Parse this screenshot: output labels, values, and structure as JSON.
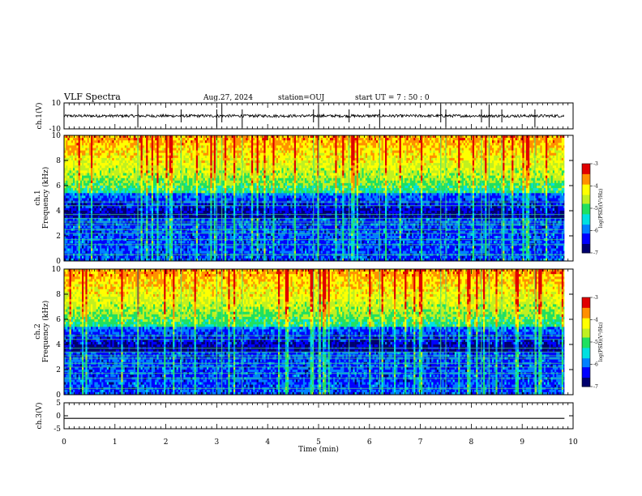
{
  "header": {
    "title": "VLF Spectra",
    "date": "Aug.27, 2024",
    "station": "station=OUJ",
    "start_ut": "start  UT =   7 : 50 : 0"
  },
  "chart_data": {
    "type": "heatmap",
    "x": {
      "label": "Time  (min)",
      "range": [
        0,
        10
      ],
      "ticks": [
        0,
        1,
        2,
        3,
        4,
        5,
        6,
        7,
        8,
        9,
        10
      ],
      "data_end": 9.83
    },
    "panels": [
      {
        "id": "ch1-waveform",
        "ylabel": "ch.1(V)",
        "ylim": [
          -10,
          10
        ],
        "ticks": [
          10,
          -10
        ],
        "baseline": 0
      },
      {
        "id": "ch1-spectrogram",
        "ylabel": "ch.1\nFrequency  (kHz)",
        "ylim": [
          0,
          10
        ],
        "ticks": [
          0,
          2,
          4,
          6,
          8,
          10
        ],
        "colorbar": {
          "label": "log(PSD)(V²/Hz)",
          "range": [
            -7,
            -3
          ],
          "ticks": [
            -3,
            -4,
            -5,
            -6,
            -7
          ]
        }
      },
      {
        "id": "ch2-spectrogram",
        "ylabel": "ch.2\nFrequency  (kHz)",
        "ylim": [
          0,
          10
        ],
        "ticks": [
          0,
          2,
          4,
          6,
          8,
          10
        ],
        "colorbar": {
          "label": "log(PSD)(V²/Hz)",
          "range": [
            -7,
            -3
          ],
          "ticks": [
            -3,
            -4,
            -5,
            -6,
            -7
          ]
        }
      },
      {
        "id": "ch3-waveform",
        "ylabel": "ch.3(V)",
        "ylim": [
          -5,
          5
        ],
        "ticks": [
          5,
          0,
          -5
        ],
        "baseline": -1
      }
    ],
    "tone_lines_khz": [
      0.5,
      1.3,
      1.7,
      2.2,
      2.5,
      2.9,
      3.1,
      3.4,
      3.7,
      4.4,
      4.7
    ],
    "spike_times_min": [
      1.45,
      2.3,
      3.0,
      3.1,
      3.5,
      4.9,
      5.0,
      5.6,
      6.2,
      7.4,
      7.5,
      8.2,
      8.35,
      8.6,
      9.25
    ],
    "colormap": [
      "#00006e",
      "#0000ff",
      "#0080ff",
      "#00e0e0",
      "#20e060",
      "#c0f020",
      "#ffff00",
      "#ff9000",
      "#e00000",
      "#ffffff"
    ]
  }
}
